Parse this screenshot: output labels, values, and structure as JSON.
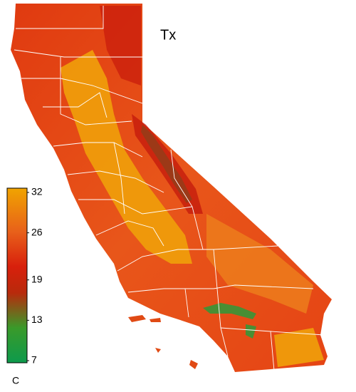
{
  "map": {
    "title": "Tx",
    "colorbar": {
      "lim": [
        7,
        32
      ],
      "ticks": [
        32,
        26,
        19,
        13,
        7
      ],
      "unit": "C"
    }
  }
}
